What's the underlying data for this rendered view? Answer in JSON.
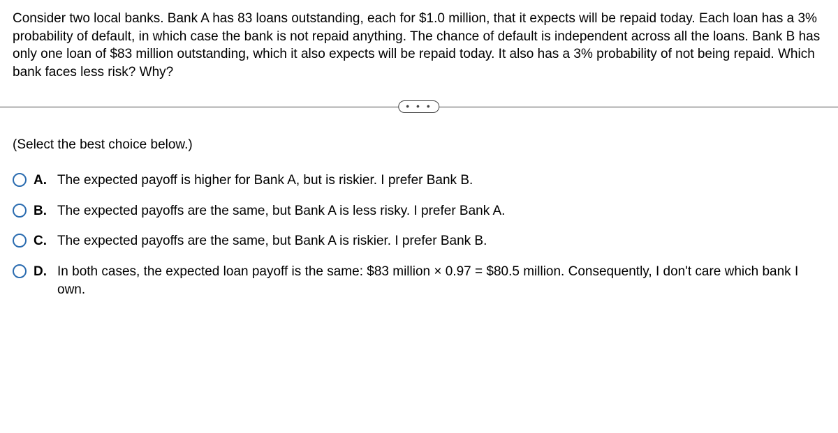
{
  "question": "Consider two local banks. Bank A has 83 loans outstanding, each for $1.0 million, that it expects will be repaid today. Each loan has a 3% probability of default, in which case the bank is not repaid anything. The chance of default is independent across all the loans. Bank B has only one loan of $83 million outstanding, which it also expects will be repaid today. It also has a 3% probability of not being repaid. Which bank faces less risk? Why?",
  "pill_label": "• • •",
  "instruction": "(Select the best choice below.)",
  "options": [
    {
      "letter": "A.",
      "text": "The expected payoff is higher for Bank A, but is riskier. I prefer Bank B."
    },
    {
      "letter": "B.",
      "text": "The expected payoffs are the same, but Bank A is less risky. I prefer Bank A."
    },
    {
      "letter": "C.",
      "text": "The expected payoffs are the same, but Bank A is riskier. I prefer Bank B."
    },
    {
      "letter": "D.",
      "text": "In both cases, the expected loan payoff is the same: $83 million × 0.97 = $80.5 million. Consequently, I don't care which bank I own."
    }
  ],
  "colors": {
    "radio_border": "#2b6cb0",
    "divider": "#444444",
    "text": "#000000",
    "background": "#ffffff"
  }
}
